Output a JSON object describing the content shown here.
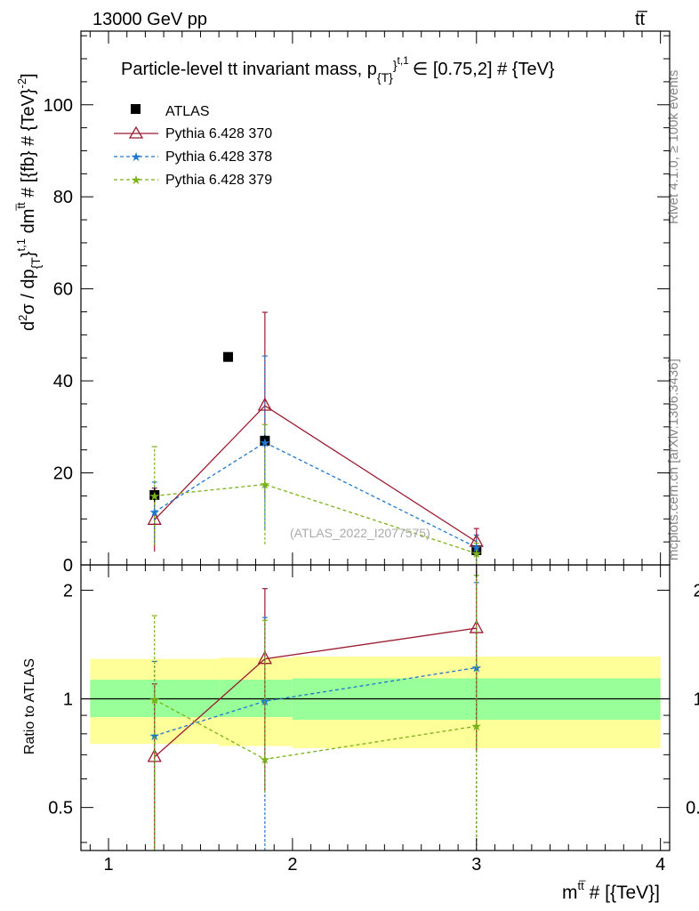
{
  "header": {
    "energy_label": "13000 GeV pp",
    "process_label": "tt̅"
  },
  "side_text": {
    "rivet": "Rivet 4.1.0, ≥ 100k events",
    "mcplots": "mcplots.cern.ch [arXiv:1306.3436]"
  },
  "colors": {
    "atlas": "#000000",
    "p370": "#9b1b30",
    "p378": "#1f77d0",
    "p379": "#7ab317",
    "band_inner": "#99ff99",
    "band_outer": "#ffff99"
  },
  "chart_data": [
    {
      "type": "scatter",
      "panel": "main",
      "title": "Particle-level t̅t invariant mass, p_{T}^{t,1} ∈ [0.75,2] # {TeV}",
      "title_parts": {
        "a": "Particle-level t",
        "bar": "t",
        "b": " invariant mass, p",
        "sub": "{T}",
        "sup": "}",
        "sup2": "t,1",
        "c": "∈ [0.75,2] # {TeV}"
      },
      "watermark": "(ATLAS_2022_I2077575)",
      "ylabel": "d²σ / dp_{T}^{t,1} dm^{t̅t} # [{fb} # {TeV}⁻²]",
      "ylabel_parts": {
        "a": "d",
        "a_sup": "2",
        "b": "σ / dp",
        "b_sub": "{T",
        "c": "}",
        "c_sup": "t,1",
        "d": " dm",
        "d_sup": "t̅t",
        "e": " # [{fb} # {TeV}",
        "e_sup": "-2",
        "f": "]"
      },
      "xlim": [
        0.85,
        4.05
      ],
      "ylim": [
        0,
        116
      ],
      "yticks": [
        0,
        20,
        40,
        60,
        80,
        100
      ],
      "ytick_labels": [
        "0",
        "20",
        "40",
        "60",
        "80",
        "100"
      ],
      "legend_position": "top-left",
      "series": [
        {
          "name": "ATLAS",
          "marker": "square",
          "x": [
            1.25,
            1.65,
            1.85,
            3.0
          ],
          "y": [
            15.2,
            45.2,
            27.0,
            3.2
          ],
          "yerr": [
            1.5,
            0.8,
            1.2,
            0.4
          ]
        },
        {
          "name": "Pythia 6.428 370",
          "marker": "triangle",
          "x": [
            1.25,
            1.85,
            3.0
          ],
          "y": [
            9.8,
            34.6,
            5.0
          ],
          "yerr": [
            6.9,
            20.3,
            2.9
          ]
        },
        {
          "name": "Pythia 6.428 378",
          "marker": "star",
          "x": [
            1.25,
            1.85,
            3.0
          ],
          "y": [
            11.5,
            26.6,
            3.8
          ],
          "yerr": [
            6.5,
            18.8,
            2.7
          ]
        },
        {
          "name": "Pythia 6.428 379",
          "marker": "star",
          "x": [
            1.25,
            1.85,
            3.0
          ],
          "y": [
            15.0,
            17.5,
            2.5
          ],
          "yerr": [
            10.7,
            13.0,
            2.2
          ]
        }
      ]
    },
    {
      "type": "line",
      "panel": "ratio",
      "ylabel": "Ratio to ATLAS",
      "xlabel": "m^{t̅t} # [{TeV}]",
      "xlabel_parts": {
        "a": "m",
        "sup": "tt̅",
        "b": " # [{TeV}]"
      },
      "xlim": [
        0.85,
        4.05
      ],
      "ylim": [
        0.38,
        2.35
      ],
      "log_y": true,
      "xticks": [
        1,
        2,
        3,
        4
      ],
      "xtick_labels": [
        "1",
        "2",
        "3",
        "4"
      ],
      "yticks": [
        0.5,
        1,
        2
      ],
      "ytick_labels": [
        "0.5",
        "1",
        "2"
      ],
      "bands": [
        {
          "x0": 0.9,
          "x1": 1.6,
          "inner": [
            0.89,
            1.13
          ],
          "outer": [
            0.75,
            1.29
          ]
        },
        {
          "x0": 1.6,
          "x1": 2.0,
          "inner": [
            0.89,
            1.13
          ],
          "outer": [
            0.74,
            1.3
          ]
        },
        {
          "x0": 2.0,
          "x1": 4.0,
          "inner": [
            0.875,
            1.14
          ],
          "outer": [
            0.73,
            1.31
          ]
        }
      ],
      "series": [
        {
          "name": "Pythia 6.428 370",
          "x": [
            1.25,
            1.85,
            3.0
          ],
          "y": [
            0.69,
            1.29,
            1.57
          ],
          "ylo": [
            0.3,
            0.55,
            0.72
          ],
          "yhi": [
            1.1,
            2.02,
            2.9
          ]
        },
        {
          "name": "Pythia 6.428 378",
          "x": [
            1.25,
            1.85,
            3.0
          ],
          "y": [
            0.79,
            0.985,
            1.22
          ],
          "ylo": [
            0.3,
            0.3,
            0.3
          ],
          "yhi": [
            1.27,
            1.68,
            2.1
          ]
        },
        {
          "name": "Pythia 6.428 379",
          "x": [
            1.25,
            1.85,
            3.0
          ],
          "y": [
            0.995,
            0.68,
            0.84
          ],
          "ylo": [
            0.3,
            0.55,
            0.3
          ],
          "yhi": [
            1.7,
            1.65,
            2.2
          ]
        }
      ]
    }
  ]
}
